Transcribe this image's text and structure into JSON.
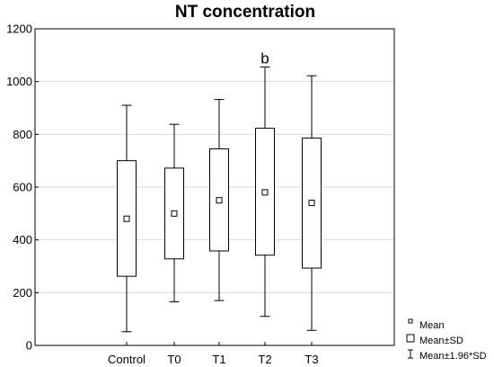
{
  "chart_data": {
    "type": "box",
    "title": "NT concentration",
    "xlabel": "",
    "ylabel": "",
    "categories": [
      "Control",
      "T0",
      "T1",
      "T2",
      "T3"
    ],
    "mean": [
      480,
      500,
      550,
      580,
      540
    ],
    "sd_low": [
      262,
      328,
      358,
      342,
      293
    ],
    "sd_high": [
      700,
      672,
      745,
      823,
      786
    ],
    "whisker_low": [
      52,
      165,
      170,
      110,
      57
    ],
    "whisker_high": [
      910,
      838,
      932,
      1055,
      1022
    ],
    "ylim": [
      0,
      1200
    ],
    "yticks": [
      0,
      200,
      400,
      600,
      800,
      1000,
      1200
    ],
    "grid": true,
    "annotations": [
      {
        "category": "T2",
        "text": "b"
      }
    ],
    "legend": {
      "position": "bottom-right",
      "entries": [
        "Mean",
        "Mean±SD",
        "Mean±1.96*SD"
      ]
    }
  }
}
